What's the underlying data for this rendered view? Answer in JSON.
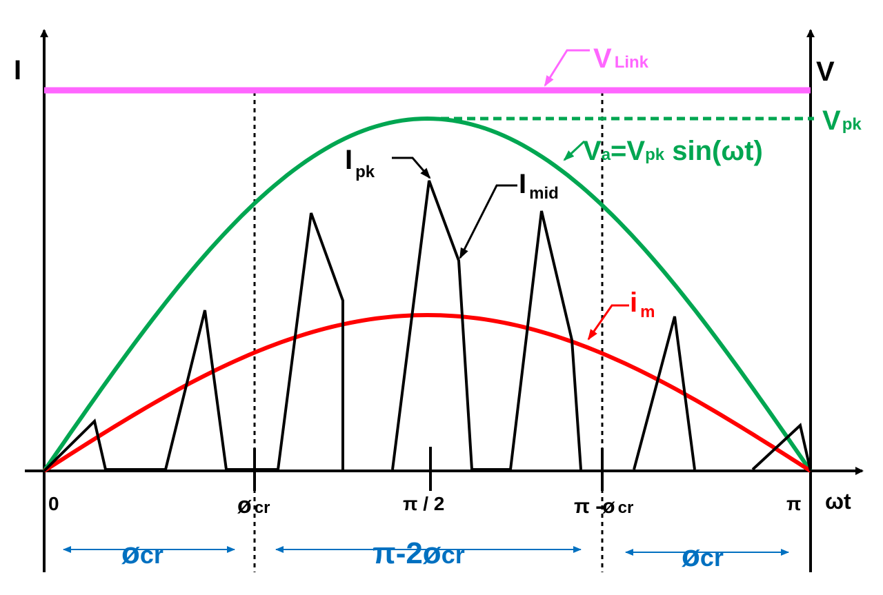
{
  "axes": {
    "current_axis_label": "I",
    "voltage_axis_label": "V",
    "x_axis_label": "ωt"
  },
  "ticks": {
    "zero": "0",
    "phi_cr": {
      "main": "ø",
      "sub": "cr"
    },
    "half_pi": "π / 2",
    "pi_minus_phi_cr": {
      "main": "π -ø",
      "sub": "cr"
    },
    "pi": "π"
  },
  "labels": {
    "v_link": {
      "main": "V",
      "sub": "Link"
    },
    "v_pk": {
      "main": "V",
      "sub": "pk"
    },
    "va_eq": {
      "p1": "V",
      "s1": "a",
      "p2": "=V",
      "s2": "pk",
      "p3": " sin(ωt)"
    },
    "i_pk": {
      "main": "I",
      "sub": "pk"
    },
    "i_mid": {
      "main": "I",
      "sub": "mid"
    },
    "i_m": {
      "main": "i",
      "sub": "m"
    }
  },
  "regions": {
    "left": {
      "main": "ø",
      "sub": "cr"
    },
    "middle": {
      "main": "π-2ø",
      "sub": "cr"
    },
    "right": {
      "main": "ø",
      "sub": "cr"
    }
  },
  "colors": {
    "axis": "#000000",
    "v_link": "#ff66ff",
    "va": "#00a651",
    "im": "#ff0000",
    "current": "#000000",
    "region": "#0070c0"
  }
}
